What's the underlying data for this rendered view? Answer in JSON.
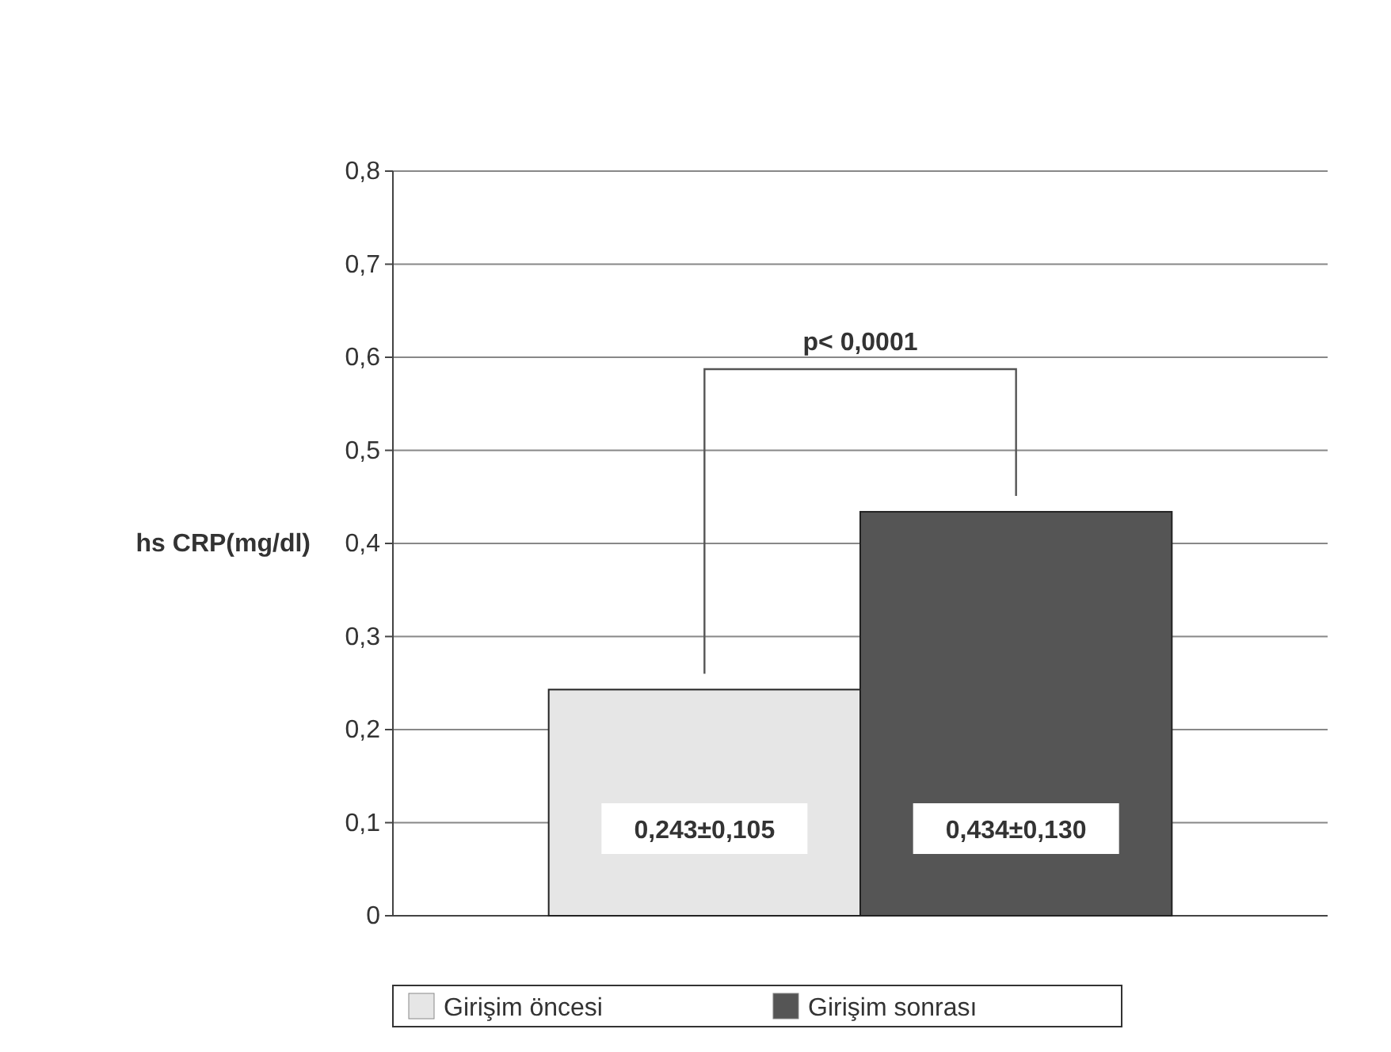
{
  "chart_data": {
    "type": "bar",
    "ylabel": "hs CRP(mg/dl)",
    "categories": [
      null
    ],
    "series": [
      {
        "name": "Girişim öncesi",
        "color": "#e6e6e6",
        "values": [
          0.243
        ],
        "value_labels": [
          "0,243±0,105"
        ]
      },
      {
        "name": "Girişim sonrası",
        "color": "#555555",
        "values": [
          0.434
        ],
        "value_labels": [
          "0,434±0,130"
        ]
      }
    ],
    "ylim": [
      0,
      0.8
    ],
    "yticks": [
      {
        "value": 0,
        "label": "0"
      },
      {
        "value": 0.1,
        "label": "0,1"
      },
      {
        "value": 0.2,
        "label": "0,2"
      },
      {
        "value": 0.3,
        "label": "0,3"
      },
      {
        "value": 0.4,
        "label": "0,4"
      },
      {
        "value": 0.5,
        "label": "0,5"
      },
      {
        "value": 0.6,
        "label": "0,6"
      },
      {
        "value": 0.7,
        "label": "0,7"
      },
      {
        "value": 0.8,
        "label": "0,8"
      }
    ],
    "annotations": [
      "p< 0,0001"
    ],
    "grid": true,
    "legend": "bottom"
  }
}
